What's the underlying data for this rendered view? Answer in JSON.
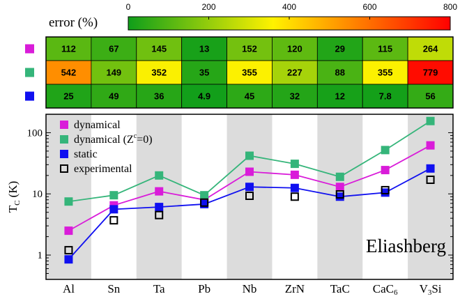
{
  "chart_data": [
    {
      "type": "heatmap",
      "title": "error (%)",
      "colorbar": {
        "min": 0,
        "max": 800,
        "ticks": [
          0,
          200,
          400,
          600,
          800
        ],
        "colors": [
          "#0f9e1a",
          "#fff200",
          "#ff0000"
        ]
      },
      "columns": [
        "Al",
        "Sn",
        "Ta",
        "Pb",
        "Nb",
        "ZrN",
        "TaC",
        "CaC6",
        "V3Si"
      ],
      "rows": [
        {
          "series": "dynamical",
          "marker_color": "#d91cd9",
          "values": [
            112,
            67,
            145,
            13,
            152,
            120,
            29,
            115,
            264
          ],
          "labels": [
            "112",
            "67",
            "145",
            "13",
            "152",
            "120",
            "29",
            "115",
            "264"
          ]
        },
        {
          "series": "dynamical (Z^c=0)",
          "marker_color": "#35b57a",
          "values": [
            542,
            149,
            352,
            35,
            355,
            227,
            88,
            355,
            779
          ],
          "labels": [
            "542",
            "149",
            "352",
            "35",
            "355",
            "227",
            "88",
            "355",
            "779"
          ]
        },
        {
          "series": "static",
          "marker_color": "#1010f0",
          "values": [
            25,
            49,
            36,
            4.9,
            45,
            32,
            12,
            7.8,
            56
          ],
          "labels": [
            "25",
            "49",
            "36",
            "4.9",
            "45",
            "32",
            "12",
            "7.8",
            "56"
          ]
        }
      ]
    },
    {
      "type": "line",
      "ylabel": {
        "main": "T",
        "sub": "C",
        "unit": " (K)"
      },
      "yscale": "log",
      "ylim": [
        0.4,
        200
      ],
      "yticks": [
        1,
        10,
        100
      ],
      "ytick_labels": [
        "1",
        "10",
        "100"
      ],
      "categories": [
        "Al",
        "Sn",
        "Ta",
        "Pb",
        "Nb",
        "ZrN",
        "TaC",
        "CaC6",
        "V3Si"
      ],
      "category_labels": [
        {
          "main": "Al",
          "sub": ""
        },
        {
          "main": "Sn",
          "sub": ""
        },
        {
          "main": "Ta",
          "sub": ""
        },
        {
          "main": "Pb",
          "sub": ""
        },
        {
          "main": "Nb",
          "sub": ""
        },
        {
          "main": "ZrN",
          "sub": ""
        },
        {
          "main": "TaC",
          "sub": ""
        },
        {
          "main": "CaC",
          "sub": "6"
        },
        {
          "main": "V",
          "sub": "3",
          "tail": "Si"
        }
      ],
      "shaded_columns": [
        0,
        2,
        4,
        6,
        8
      ],
      "annotation": "Eliashberg",
      "legend_position": "top-left",
      "series": [
        {
          "name": "dynamical",
          "legend": {
            "main": "dynamical",
            "sup": ""
          },
          "color": "#d91cd9",
          "marker": "filled-square",
          "line": true,
          "values": [
            2.5,
            6.5,
            11,
            8,
            23,
            20.5,
            13,
            24.5,
            62
          ]
        },
        {
          "name": "dynamical (Z^c=0)",
          "legend": {
            "main": "dynamical (Z",
            "sup": "c",
            "tail": "=0)"
          },
          "color": "#35b57a",
          "marker": "filled-square",
          "line": true,
          "values": [
            7.5,
            9.5,
            20,
            9.5,
            42,
            31,
            19,
            52,
            155
          ]
        },
        {
          "name": "static",
          "legend": {
            "main": "static",
            "sup": ""
          },
          "color": "#1010f0",
          "marker": "filled-square",
          "line": true,
          "values": [
            0.85,
            5.6,
            6.1,
            6.8,
            13,
            12.5,
            9,
            10.5,
            26
          ]
        },
        {
          "name": "experimental",
          "legend": {
            "main": "experimental",
            "sup": ""
          },
          "color": "#000000",
          "marker": "open-square",
          "line": false,
          "values": [
            1.2,
            3.7,
            4.5,
            7.2,
            9.3,
            9,
            9.8,
            11.5,
            17
          ]
        }
      ]
    }
  ]
}
